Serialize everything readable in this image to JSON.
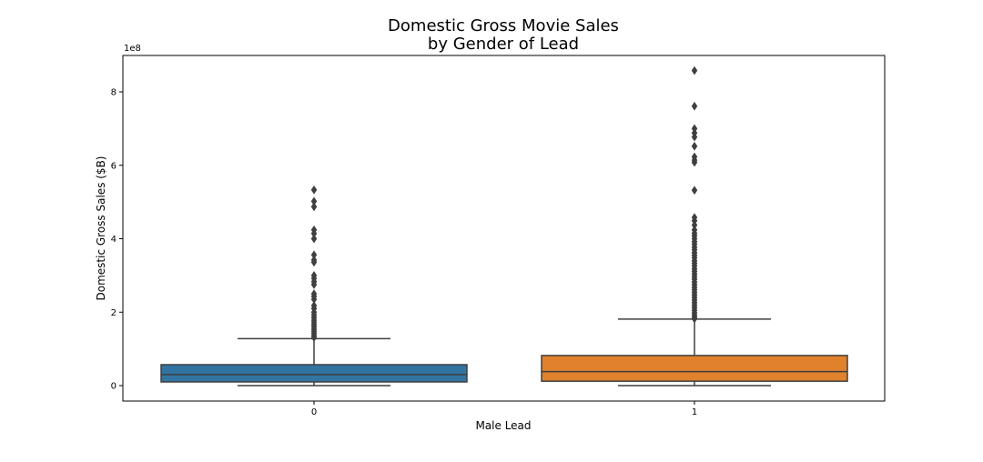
{
  "chart_data": {
    "type": "box",
    "title_lines": [
      "Domestic Gross Movie Sales",
      "by Gender of Lead"
    ],
    "xlabel": "Male Lead",
    "ylabel": "Domestic Gross Sales ($B)",
    "y_offset_label": "1e8",
    "ylim": [
      -40000000,
      900000000
    ],
    "y_ticks": [
      0,
      200000000,
      400000000,
      600000000,
      800000000
    ],
    "y_tick_labels": [
      "0",
      "2",
      "4",
      "6",
      "8"
    ],
    "grid": false,
    "categories": [
      "0",
      "1"
    ],
    "boxes": [
      {
        "category": "0",
        "color": "#3274a1",
        "whisker_low": 0,
        "q1": 10000000,
        "median": 30000000,
        "q3": 57000000,
        "whisker_high": 128000000,
        "outliers": [
          533000000,
          502000000,
          487000000,
          424000000,
          414000000,
          400000000,
          356000000,
          342000000,
          336000000,
          300000000,
          292000000,
          283000000,
          275000000,
          250000000,
          243000000,
          235000000,
          218000000,
          210000000,
          200000000,
          192000000,
          185000000,
          178000000,
          172000000,
          166000000,
          160000000,
          154000000,
          148000000,
          142000000,
          136000000,
          131000000
        ]
      },
      {
        "category": "1",
        "color": "#e1812c",
        "whisker_low": 0,
        "q1": 12000000,
        "median": 38000000,
        "q3": 82000000,
        "whisker_high": 181000000,
        "outliers": [
          858000000,
          761000000,
          700000000,
          688000000,
          677000000,
          652000000,
          623000000,
          614000000,
          608000000,
          532000000,
          458000000,
          449000000,
          437000000,
          424000000,
          415000000,
          408000000,
          400000000,
          392000000,
          385000000,
          377000000,
          370000000,
          362000000,
          355000000,
          348000000,
          340000000,
          333000000,
          326000000,
          318000000,
          311000000,
          304000000,
          297000000,
          290000000,
          282000000,
          275000000,
          268000000,
          261000000,
          254000000,
          247000000,
          240000000,
          233000000,
          226000000,
          219000000,
          212000000,
          205000000,
          198000000,
          192000000,
          186000000,
          182000000
        ]
      }
    ]
  }
}
